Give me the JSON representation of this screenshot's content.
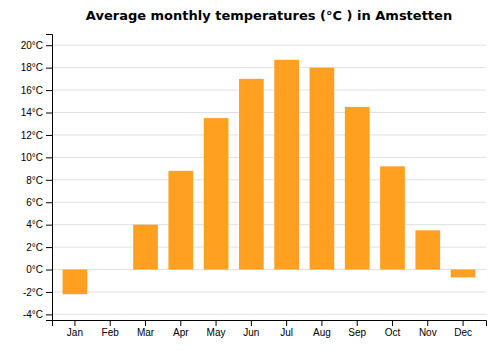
{
  "chart_data": {
    "type": "bar",
    "title": "Average monthly temperatures (°C ) in Amstetten",
    "categories": [
      "Jan",
      "Feb",
      "Mar",
      "Apr",
      "May",
      "Jun",
      "Jul",
      "Aug",
      "Sep",
      "Oct",
      "Nov",
      "Dec"
    ],
    "values": [
      -2.2,
      0.0,
      4.0,
      8.8,
      13.5,
      17.0,
      18.7,
      18.0,
      14.5,
      9.2,
      3.5,
      -0.7
    ],
    "color": "#FFA020",
    "ylim": [
      -4.5,
      21
    ],
    "yticks": [
      {
        "value": -4,
        "label": "-4°C"
      },
      {
        "value": -2,
        "label": "-2°C"
      },
      {
        "value": 0,
        "label": "0°C"
      },
      {
        "value": 2,
        "label": "2°C"
      },
      {
        "value": 4,
        "label": "4°C"
      },
      {
        "value": 6,
        "label": "6°C"
      },
      {
        "value": 8,
        "label": "8°C"
      },
      {
        "value": 10,
        "label": "10°C"
      },
      {
        "value": 12,
        "label": "12°C"
      },
      {
        "value": 14,
        "label": "14°C"
      },
      {
        "value": 16,
        "label": "16°C"
      },
      {
        "value": 18,
        "label": "18°C"
      },
      {
        "value": 20,
        "label": "20°C"
      }
    ],
    "grid": true
  }
}
